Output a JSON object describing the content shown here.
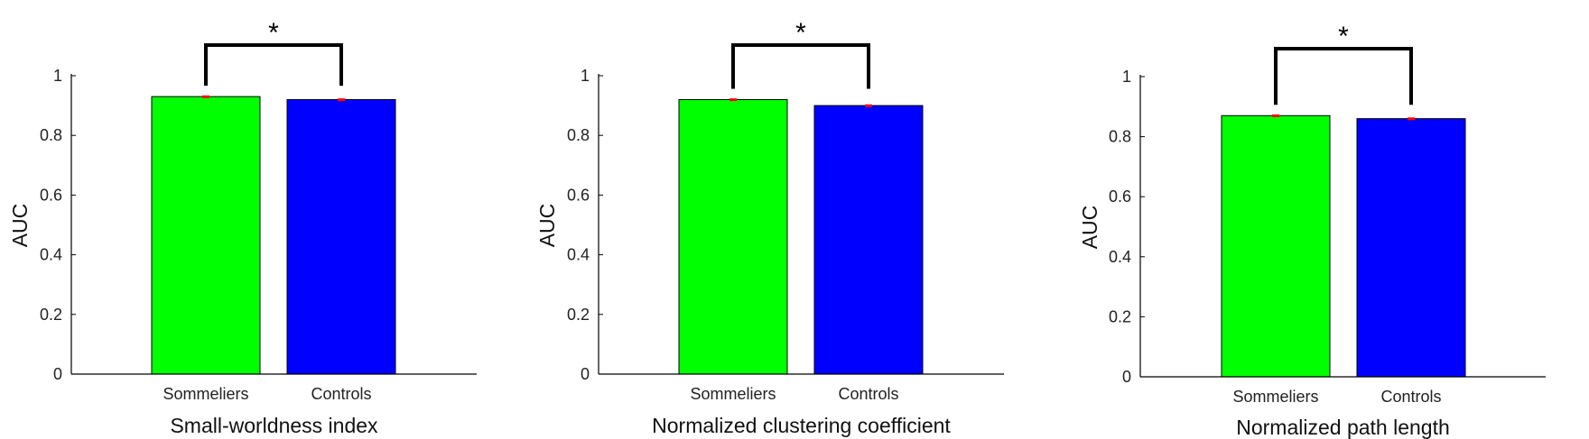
{
  "chart_data": [
    {
      "type": "bar",
      "categories": [
        "Sommeliers",
        "Controls"
      ],
      "values": [
        0.93,
        0.92
      ],
      "errors": [
        0.004,
        0.004
      ],
      "xlabel": "Small-worldness index",
      "ylabel": "AUC",
      "ylim": [
        0,
        1
      ],
      "yticks": [
        "0",
        "0.2",
        "0.4",
        "0.6",
        "0.8",
        "1"
      ],
      "significance": "*"
    },
    {
      "type": "bar",
      "categories": [
        "Sommeliers",
        "Controls"
      ],
      "values": [
        0.92,
        0.9
      ],
      "errors": [
        0.004,
        0.004
      ],
      "xlabel": "Normalized clustering coefficient",
      "ylabel": "AUC",
      "ylim": [
        0,
        1
      ],
      "yticks": [
        "0",
        "0.2",
        "0.4",
        "0.6",
        "0.8",
        "1"
      ],
      "significance": "*"
    },
    {
      "type": "bar",
      "categories": [
        "Sommeliers",
        "Controls"
      ],
      "values": [
        0.87,
        0.86
      ],
      "errors": [
        0.004,
        0.004
      ],
      "xlabel": "Normalized path length",
      "ylabel": "AUC",
      "ylim": [
        0,
        1
      ],
      "yticks": [
        "0",
        "0.2",
        "0.4",
        "0.6",
        "0.8",
        "1"
      ],
      "significance": "*"
    }
  ],
  "colors": {
    "sommeliers": "#00ff00",
    "controls": "#0000ff",
    "error_bar": "#ff0000",
    "axis": "#000000"
  }
}
